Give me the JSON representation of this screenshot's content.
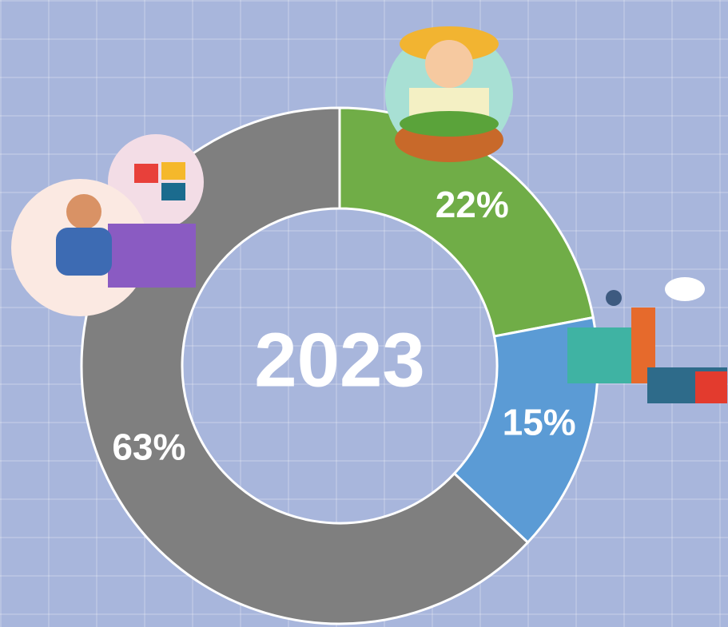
{
  "chart_data": {
    "type": "donut",
    "center_text": "2023",
    "categories": [
      null,
      null,
      null
    ],
    "values": [
      22,
      15,
      63
    ],
    "value_labels": [
      "22%",
      "15%",
      "63%"
    ],
    "colors": [
      "#70ad47",
      "#5b9bd5",
      "#7f7f7f"
    ]
  }
}
